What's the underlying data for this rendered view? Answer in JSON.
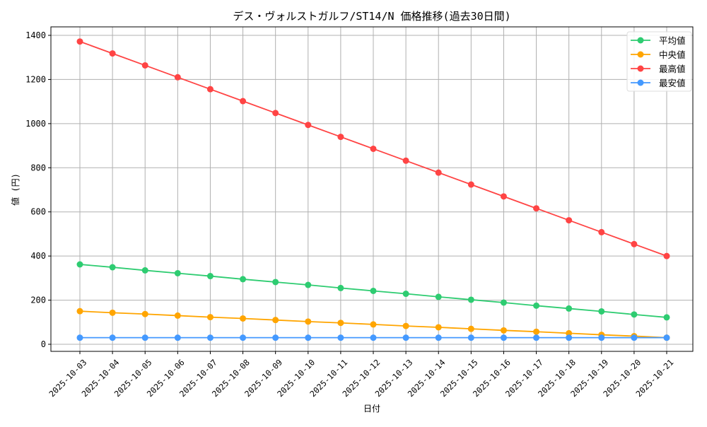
{
  "chart_data": {
    "type": "line",
    "title": "デス・ヴォルストガルフ/ST14/N 価格推移(過去30日間)",
    "xlabel": "日付",
    "ylabel": "値 (円)",
    "categories": [
      "2025-10-03",
      "2025-10-04",
      "2025-10-05",
      "2025-10-06",
      "2025-10-07",
      "2025-10-08",
      "2025-10-09",
      "2025-10-10",
      "2025-10-11",
      "2025-10-12",
      "2025-10-13",
      "2025-10-14",
      "2025-10-15",
      "2025-10-16",
      "2025-10-17",
      "2025-10-18",
      "2025-10-19",
      "2025-10-20",
      "2025-10-21"
    ],
    "yticks": [
      0,
      200,
      400,
      600,
      800,
      1000,
      1200,
      1400
    ],
    "ylim": [
      -35,
      1440
    ],
    "grid": true,
    "legend_position": "top-right",
    "series": [
      {
        "name": "平均値",
        "color": "#2ecc71",
        "values": [
          362,
          349,
          335,
          322,
          309,
          295,
          282,
          269,
          255,
          242,
          229,
          215,
          202,
          189,
          175,
          162,
          149,
          135,
          122
        ]
      },
      {
        "name": "中央値",
        "color": "#ffa500",
        "values": [
          150,
          143,
          137,
          130,
          123,
          117,
          110,
          103,
          97,
          90,
          83,
          77,
          70,
          63,
          57,
          50,
          43,
          37,
          30
        ]
      },
      {
        "name": "最高値",
        "color": "#ff4444",
        "values": [
          1372,
          1318,
          1264,
          1210,
          1156,
          1102,
          1048,
          994,
          940,
          886,
          832,
          778,
          724,
          670,
          616,
          562,
          508,
          454,
          400
        ]
      },
      {
        "name": "最安値",
        "color": "#4499ff",
        "values": [
          30,
          30,
          30,
          30,
          30,
          30,
          30,
          30,
          30,
          30,
          30,
          30,
          30,
          30,
          30,
          30,
          30,
          30,
          30
        ]
      }
    ]
  }
}
